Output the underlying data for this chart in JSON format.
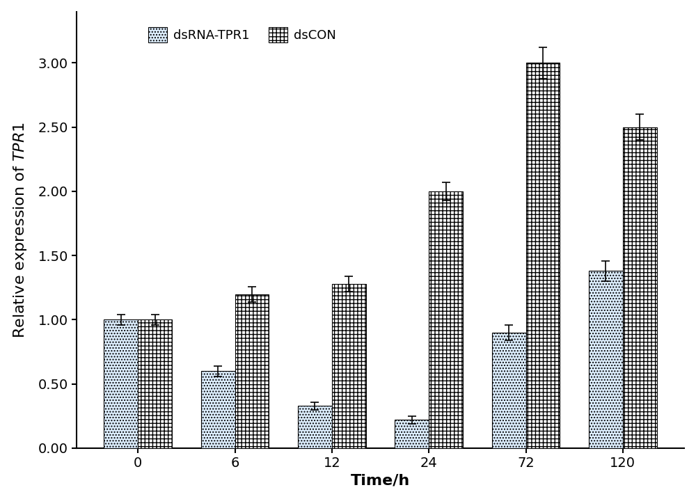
{
  "categories": [
    "0",
    "6",
    "12",
    "24",
    "72",
    "120"
  ],
  "dsRNA_TPR1_values": [
    1.0,
    0.6,
    0.33,
    0.22,
    0.9,
    1.38
  ],
  "dsRNA_TPR1_errors": [
    0.04,
    0.04,
    0.03,
    0.03,
    0.06,
    0.08
  ],
  "dsCON_values": [
    1.0,
    1.2,
    1.28,
    2.0,
    3.0,
    2.5
  ],
  "dsCON_errors": [
    0.04,
    0.06,
    0.06,
    0.07,
    0.12,
    0.1
  ],
  "xlabel": "Time/h",
  "ylim": [
    0.0,
    3.4
  ],
  "yticks": [
    0.0,
    0.5,
    1.0,
    1.5,
    2.0,
    2.5,
    3.0
  ],
  "bar_width": 0.35,
  "legend_labels": [
    "dsRNA-TPR1",
    "dsCON"
  ],
  "dsRNA_color": "#ddeeff",
  "dsCON_color": "#ffffff",
  "background_color": "#ffffff",
  "tick_fontsize": 14,
  "label_fontsize": 16,
  "legend_fontsize": 13,
  "figure_width": 10.0,
  "figure_height": 7.17,
  "dpi": 100
}
